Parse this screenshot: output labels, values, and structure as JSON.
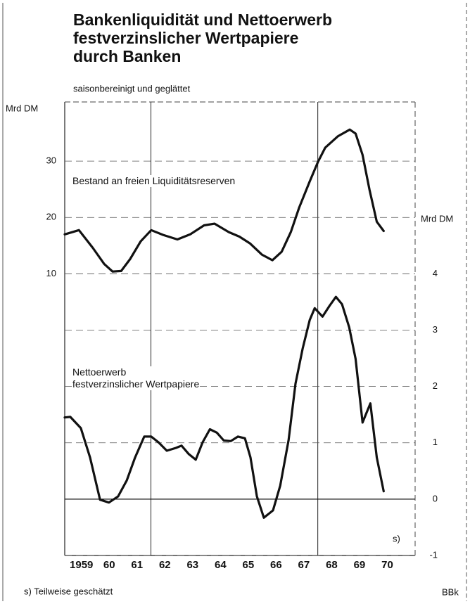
{
  "chart_data": {
    "type": "line",
    "title": [
      "Bankenliquidität und Nettoerwerb",
      "festverzinslicher Wertpapiere",
      "durch Banken"
    ],
    "subtitle": "saisonbereinigt und geglättet",
    "ylabel": "Mrd DM",
    "y2label": "Mrd DM",
    "xlim": [
      1958.9,
      1971.5
    ],
    "xticks": [
      {
        "value": 1959.5,
        "label": "1959"
      },
      {
        "value": 1960.5,
        "label": "60"
      },
      {
        "value": 1961.5,
        "label": "61"
      },
      {
        "value": 1962.5,
        "label": "62"
      },
      {
        "value": 1963.5,
        "label": "63"
      },
      {
        "value": 1964.5,
        "label": "64"
      },
      {
        "value": 1965.5,
        "label": "65"
      },
      {
        "value": 1966.5,
        "label": "66"
      },
      {
        "value": 1967.5,
        "label": "67"
      },
      {
        "value": 1968.5,
        "label": "68"
      },
      {
        "value": 1969.5,
        "label": "69"
      },
      {
        "value": 1970.5,
        "label": "70"
      }
    ],
    "xgrid": [
      1962,
      1968
    ],
    "ylim": [
      -40,
      40.5
    ],
    "yticks": [
      10,
      20,
      30
    ],
    "y2lim": [
      -1,
      7.05
    ],
    "y2ticks": [
      -1,
      0,
      1,
      2,
      3,
      4
    ],
    "series": [
      {
        "name": "Bestand an freien Liquiditätsreserven",
        "color": "#111111",
        "axis": "y",
        "x": [
          1958.9,
          1959.41,
          1959.91,
          1960.32,
          1960.62,
          1960.93,
          1961.25,
          1961.63,
          1962.01,
          1962.44,
          1962.95,
          1963.41,
          1963.91,
          1964.29,
          1964.8,
          1965.18,
          1965.56,
          1965.99,
          1966.37,
          1966.7,
          1967.03,
          1967.33,
          1967.71,
          1968.01,
          1968.27,
          1968.72,
          1969.15,
          1969.36,
          1969.61,
          1969.86,
          1970.12,
          1970.37
        ],
        "values": [
          17.0,
          17.75,
          14.6,
          11.75,
          10.4,
          10.5,
          12.6,
          15.75,
          17.75,
          16.9,
          16.1,
          17.0,
          18.6,
          18.9,
          17.4,
          16.6,
          15.4,
          13.4,
          12.4,
          13.9,
          17.4,
          21.75,
          26.4,
          29.9,
          32.4,
          34.4,
          35.6,
          34.9,
          31.1,
          24.9,
          19.25,
          17.6
        ]
      },
      {
        "name": "Nettoerwerb\nfestverzinslicher Wertpapiere",
        "color": "#111111",
        "axis": "y2",
        "x": [
          1958.9,
          1959.1,
          1959.48,
          1959.81,
          1960.17,
          1960.49,
          1960.82,
          1961.13,
          1961.43,
          1961.76,
          1962.01,
          1962.27,
          1962.57,
          1962.9,
          1963.1,
          1963.36,
          1963.61,
          1963.86,
          1964.12,
          1964.37,
          1964.62,
          1964.87,
          1965.13,
          1965.38,
          1965.58,
          1965.81,
          1966.06,
          1966.39,
          1966.65,
          1966.95,
          1967.2,
          1967.46,
          1967.71,
          1967.89,
          1968.17,
          1968.42,
          1968.65,
          1968.87,
          1969.13,
          1969.36,
          1969.61,
          1969.89,
          1970.12,
          1970.37
        ],
        "values": [
          1.45,
          1.46,
          1.26,
          0.74,
          -0.01,
          -0.06,
          0.05,
          0.33,
          0.74,
          1.11,
          1.11,
          1.01,
          0.86,
          0.91,
          0.95,
          0.8,
          0.7,
          1.01,
          1.24,
          1.18,
          1.04,
          1.03,
          1.11,
          1.08,
          0.74,
          0.05,
          -0.33,
          -0.2,
          0.24,
          1.05,
          2.05,
          2.68,
          3.18,
          3.39,
          3.24,
          3.43,
          3.59,
          3.46,
          3.05,
          2.49,
          1.36,
          1.7,
          0.74,
          0.14
        ]
      }
    ],
    "marker": "s)",
    "footnote": "s) Teilweise geschätzt",
    "source": "BBk"
  }
}
